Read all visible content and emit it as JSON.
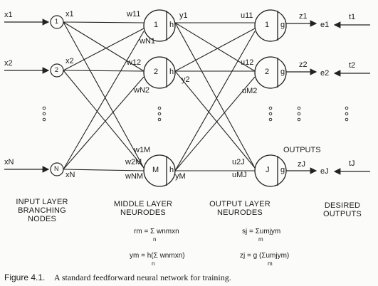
{
  "input_layer": {
    "input_labels": [
      "x1",
      "x2",
      "xN"
    ],
    "branch_outputs": [
      "x1",
      "x2",
      "xN"
    ],
    "node_labels": [
      "1",
      "2",
      "N"
    ],
    "caption": [
      "INPUT LAYER",
      "BRANCHING",
      "NODES"
    ]
  },
  "middle_layer": {
    "node_labels": [
      "1",
      "2",
      "M"
    ],
    "function_label": "h",
    "weight_labels": [
      "w11",
      "wN1",
      "w12",
      "wN2",
      "w1M",
      "w2M",
      "wNM"
    ],
    "outputs": [
      "y1",
      "y2",
      "yM"
    ],
    "caption": [
      "MIDDLE LAYER",
      "NEURODES"
    ]
  },
  "output_layer": {
    "node_labels": [
      "1",
      "2",
      "J"
    ],
    "function_label": "g",
    "weight_labels": [
      "u11",
      "u12",
      "uM2",
      "u2J",
      "uMJ"
    ],
    "outputs": [
      "z1",
      "z2",
      "zJ"
    ],
    "errors": [
      "e1",
      "e2",
      "eJ"
    ],
    "outputs_label": "OUTPUTS",
    "caption": [
      "OUTPUT LAYER",
      "NEURODES"
    ]
  },
  "desired": {
    "targets": [
      "t1",
      "t2",
      "tJ"
    ],
    "caption": [
      "DESIRED",
      "OUTPUTS"
    ]
  },
  "equations": {
    "r_m": "rm = Σ wnmxn",
    "y_m": "ym = h(Σ wnmxn)",
    "s_j": "sj = Σumjym",
    "z_j": "zj = g (Σumjym)",
    "sum_index_n": "n",
    "sum_index_m": "m"
  },
  "figure_caption": {
    "number": "Figure 4.1.",
    "text": "A standard feedforward neural network for training."
  }
}
